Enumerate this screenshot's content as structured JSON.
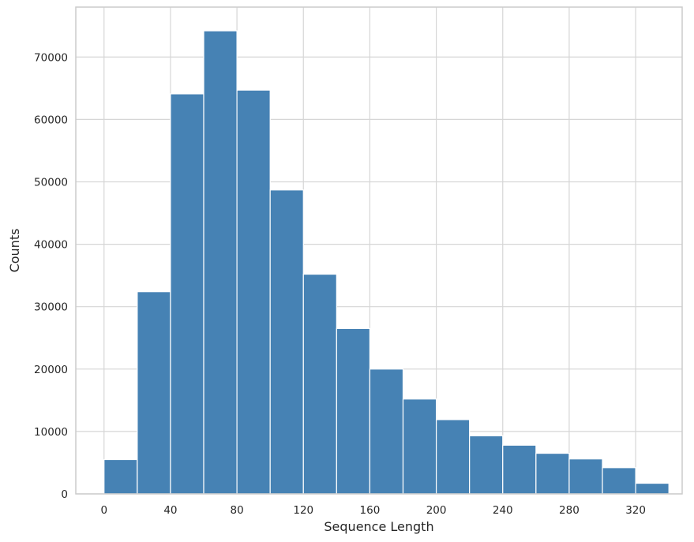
{
  "chart_data": {
    "type": "bar",
    "title": "",
    "xlabel": "Sequence Length",
    "ylabel": "Counts",
    "xlim": [
      -17,
      348
    ],
    "ylim": [
      0,
      78000
    ],
    "bin_width": 20,
    "bins": [
      {
        "start": 0,
        "end": 20,
        "count": 5500
      },
      {
        "start": 20,
        "end": 40,
        "count": 32400
      },
      {
        "start": 40,
        "end": 60,
        "count": 64100
      },
      {
        "start": 60,
        "end": 80,
        "count": 74200
      },
      {
        "start": 80,
        "end": 100,
        "count": 64700
      },
      {
        "start": 100,
        "end": 120,
        "count": 48700
      },
      {
        "start": 120,
        "end": 140,
        "count": 35200
      },
      {
        "start": 140,
        "end": 160,
        "count": 26500
      },
      {
        "start": 160,
        "end": 180,
        "count": 20000
      },
      {
        "start": 180,
        "end": 200,
        "count": 15200
      },
      {
        "start": 200,
        "end": 220,
        "count": 11900
      },
      {
        "start": 220,
        "end": 240,
        "count": 9300
      },
      {
        "start": 240,
        "end": 260,
        "count": 7800
      },
      {
        "start": 260,
        "end": 280,
        "count": 6500
      },
      {
        "start": 280,
        "end": 300,
        "count": 5600
      },
      {
        "start": 300,
        "end": 320,
        "count": 4200
      },
      {
        "start": 320,
        "end": 340,
        "count": 1700
      }
    ],
    "x_ticks": [
      0,
      40,
      80,
      120,
      160,
      200,
      240,
      280,
      320
    ],
    "y_ticks": [
      0,
      10000,
      20000,
      30000,
      40000,
      50000,
      60000,
      70000
    ],
    "grid": true,
    "bar_color": "#4682b4",
    "bar_edge_color": "#ffffff",
    "grid_color": "#d6d6d6",
    "frame_color": "#cccccc"
  }
}
